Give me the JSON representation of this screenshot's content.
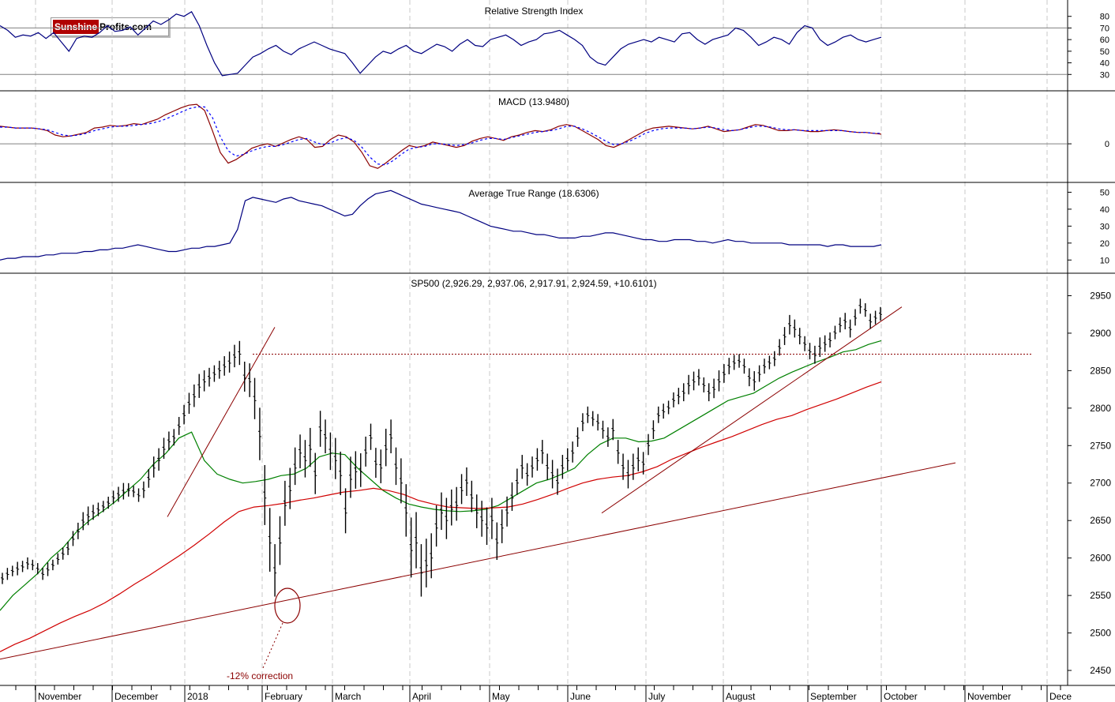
{
  "logo": {
    "part1": "Sunshine",
    "part2": "Profits.com"
  },
  "colors": {
    "price_bars": "#000000",
    "ma_fast": "#008000",
    "ma_slow": "#d00000",
    "trendline": "#8b0000",
    "indicator": "#000080",
    "signal": "#0000ff",
    "reference": "#808080"
  },
  "x_axis": {
    "labels": [
      "November",
      "December",
      "2018",
      "February",
      "March",
      "April",
      "May",
      "June",
      "July",
      "August",
      "September",
      "October",
      "November",
      "Dece"
    ]
  },
  "chart_data": [
    {
      "type": "line",
      "title": "Relative Strength Index",
      "y_ticks": [
        80,
        70,
        60,
        50,
        40,
        30
      ],
      "reference_lines": [
        70,
        30
      ],
      "ylim": [
        20,
        90
      ],
      "series": [
        {
          "values": [
            72,
            68,
            62,
            64,
            63,
            66,
            61,
            66,
            58,
            50,
            61,
            63,
            62,
            66,
            72,
            67,
            68,
            71,
            64,
            70,
            76,
            73,
            77,
            82,
            80,
            84,
            72,
            55,
            40,
            29,
            30,
            31,
            38,
            45,
            48,
            52,
            55,
            50,
            47,
            52,
            55,
            58,
            55,
            52,
            50,
            48,
            40,
            31,
            38,
            45,
            50,
            48,
            52,
            55,
            50,
            48,
            52,
            56,
            54,
            50,
            56,
            60,
            55,
            54,
            60,
            62,
            64,
            60,
            55,
            58,
            60,
            65,
            66,
            68,
            64,
            60,
            55,
            45,
            40,
            38,
            45,
            52,
            56,
            58,
            60,
            58,
            62,
            60,
            58,
            65,
            66,
            60,
            56,
            60,
            62,
            64,
            70,
            68,
            62,
            55,
            58,
            62,
            60,
            56,
            66,
            72,
            70,
            60,
            55,
            58,
            62,
            64,
            60,
            58,
            60,
            62
          ]
        }
      ]
    },
    {
      "type": "line",
      "title": "MACD (13.9480)",
      "y_ticks": [
        0
      ],
      "reference_lines": [
        0
      ],
      "ylim": [
        -35,
        55
      ],
      "series": [
        {
          "name": "MACD",
          "values": [
            20,
            19,
            18,
            18,
            18,
            17,
            15,
            10,
            8,
            9,
            11,
            13,
            18,
            19,
            21,
            20,
            21,
            23,
            22,
            25,
            28,
            33,
            37,
            41,
            44,
            45,
            38,
            15,
            -10,
            -22,
            -18,
            -12,
            -5,
            -2,
            0,
            -3,
            1,
            5,
            8,
            5,
            -4,
            -3,
            5,
            10,
            8,
            2,
            -10,
            -25,
            -28,
            -22,
            -15,
            -8,
            -2,
            -4,
            -2,
            2,
            0,
            -2,
            -4,
            -2,
            3,
            6,
            8,
            6,
            4,
            8,
            10,
            13,
            15,
            14,
            16,
            20,
            22,
            20,
            15,
            10,
            5,
            -2,
            -4,
            0,
            5,
            10,
            15,
            18,
            19,
            20,
            19,
            18,
            17,
            18,
            20,
            17,
            14,
            15,
            16,
            19,
            22,
            21,
            18,
            15,
            15,
            16,
            15,
            14,
            14,
            15,
            16,
            15,
            14,
            13,
            13,
            12,
            11
          ]
        },
        {
          "name": "Signal",
          "values": [
            19,
            19,
            18,
            18,
            18,
            17,
            16,
            13,
            10,
            9,
            10,
            12,
            15,
            17,
            19,
            20,
            20,
            21,
            22,
            23,
            25,
            28,
            32,
            36,
            40,
            42,
            42,
            30,
            8,
            -8,
            -14,
            -12,
            -8,
            -5,
            -3,
            -3,
            -1,
            2,
            5,
            6,
            2,
            -1,
            1,
            5,
            7,
            4,
            -4,
            -15,
            -23,
            -24,
            -19,
            -12,
            -6,
            -4,
            -3,
            0,
            0,
            -1,
            -2,
            -1,
            1,
            4,
            6,
            6,
            5,
            7,
            9,
            11,
            13,
            14,
            15,
            17,
            20,
            20,
            17,
            13,
            8,
            3,
            -1,
            0,
            3,
            7,
            12,
            15,
            17,
            18,
            18,
            18,
            17,
            18,
            19,
            18,
            16,
            15,
            16,
            18,
            20,
            20,
            19,
            17,
            16,
            16,
            15,
            15,
            15,
            15,
            15,
            15,
            14,
            13,
            13,
            12,
            12
          ]
        }
      ]
    },
    {
      "type": "line",
      "title": "Average True Range (18.6306)",
      "y_ticks": [
        50,
        40,
        30,
        20,
        10
      ],
      "ylim": [
        5,
        53
      ],
      "series": [
        {
          "values": [
            10,
            11,
            11,
            12,
            12,
            12,
            13,
            13,
            14,
            14,
            14,
            15,
            15,
            16,
            16,
            17,
            17,
            18,
            19,
            18,
            17,
            16,
            15,
            15,
            16,
            17,
            17,
            18,
            18,
            19,
            20,
            28,
            45,
            47,
            46,
            45,
            44,
            46,
            47,
            45,
            44,
            43,
            42,
            40,
            38,
            36,
            37,
            42,
            46,
            49,
            50,
            51,
            49,
            47,
            45,
            43,
            42,
            41,
            40,
            39,
            38,
            36,
            34,
            32,
            30,
            29,
            28,
            27,
            27,
            26,
            25,
            25,
            24,
            23,
            23,
            23,
            24,
            24,
            25,
            26,
            26,
            25,
            24,
            23,
            22,
            22,
            21,
            21,
            22,
            22,
            22,
            21,
            21,
            20,
            21,
            22,
            21,
            21,
            20,
            20,
            20,
            20,
            20,
            19,
            19,
            19,
            19,
            19,
            18,
            19,
            19,
            18,
            18,
            18,
            18,
            19
          ]
        }
      ]
    },
    {
      "type": "bar",
      "title": "SP500 (2,926.29, 2,937.06, 2,917.91, 2,924.59, +10.6101)",
      "y_ticks": [
        2950,
        2900,
        2850,
        2800,
        2750,
        2700,
        2650,
        2600,
        2550,
        2500,
        2450
      ],
      "ylim": [
        2430,
        2980
      ],
      "close": [
        2572,
        2578,
        2582,
        2585,
        2588,
        2592,
        2590,
        2585,
        2578,
        2584,
        2590,
        2598,
        2605,
        2612,
        2625,
        2635,
        2648,
        2655,
        2660,
        2664,
        2668,
        2673,
        2680,
        2684,
        2688,
        2690,
        2688,
        2683,
        2690,
        2705,
        2720,
        2730,
        2745,
        2755,
        2760,
        2775,
        2790,
        2805,
        2815,
        2828,
        2835,
        2840,
        2845,
        2850,
        2855,
        2860,
        2868,
        2872,
        2840,
        2835,
        2810,
        2762,
        2680,
        2620,
        2580,
        2620,
        2670,
        2690,
        2720,
        2740,
        2730,
        2745,
        2710,
        2770,
        2760,
        2740,
        2730,
        2710,
        2660,
        2705,
        2715,
        2715,
        2740,
        2760,
        2725,
        2720,
        2745,
        2760,
        2720,
        2700,
        2660,
        2610,
        2620,
        2580,
        2590,
        2600,
        2640,
        2660,
        2650,
        2665,
        2670,
        2690,
        2700,
        2680,
        2660,
        2650,
        2640,
        2650,
        2620,
        2640,
        2660,
        2680,
        2700,
        2720,
        2710,
        2720,
        2730,
        2740,
        2720,
        2710,
        2700,
        2720,
        2730,
        2740,
        2760,
        2780,
        2790,
        2785,
        2780,
        2770,
        2760,
        2770,
        2740,
        2720,
        2710,
        2720,
        2730,
        2725,
        2750,
        2770,
        2790,
        2795,
        2800,
        2810,
        2815,
        2820,
        2830,
        2835,
        2840,
        2830,
        2820,
        2825,
        2835,
        2845,
        2855,
        2860,
        2862,
        2855,
        2840,
        2835,
        2845,
        2855,
        2860,
        2865,
        2880,
        2895,
        2910,
        2905,
        2895,
        2885,
        2875,
        2870,
        2880,
        2885,
        2890,
        2900,
        2910,
        2915,
        2905,
        2920,
        2935,
        2930,
        2915,
        2920,
        2925
      ],
      "hl_range": [
        15,
        16,
        14,
        18,
        15,
        16,
        14,
        15,
        16,
        18,
        14,
        15,
        16,
        18,
        20,
        22,
        24,
        25,
        20,
        18,
        15,
        16,
        18,
        20,
        22,
        18,
        15,
        18,
        22,
        25,
        28,
        30,
        28,
        25,
        22,
        24,
        26,
        28,
        30,
        32,
        28,
        25,
        22,
        24,
        26,
        28,
        30,
        32,
        40,
        45,
        55,
        70,
        80,
        85,
        70,
        65,
        60,
        55,
        50,
        45,
        50,
        52,
        55,
        48,
        45,
        50,
        55,
        58,
        60,
        55,
        50,
        45,
        40,
        35,
        40,
        45,
        50,
        45,
        50,
        60,
        70,
        80,
        75,
        70,
        65,
        60,
        55,
        50,
        55,
        48,
        45,
        40,
        38,
        42,
        45,
        48,
        50,
        55,
        50,
        45,
        40,
        38,
        35,
        32,
        30,
        28,
        30,
        32,
        35,
        38,
        35,
        32,
        30,
        28,
        26,
        24,
        22,
        20,
        22,
        24,
        26,
        28,
        32,
        35,
        38,
        35,
        32,
        30,
        28,
        25,
        22,
        20,
        18,
        20,
        22,
        24,
        26,
        25,
        22,
        20,
        24,
        26,
        28,
        25,
        22,
        20,
        18,
        20,
        24,
        26,
        22,
        20,
        18,
        20,
        22,
        24,
        26,
        24,
        22,
        20,
        22,
        24,
        26,
        22,
        20,
        18,
        20,
        22,
        24,
        22,
        20,
        18,
        20,
        18,
        18,
        20,
        22,
        20
      ],
      "series": [
        {
          "values": [
            2530,
            2550,
            2565,
            2580,
            2600,
            2615,
            2635,
            2650,
            2662,
            2675,
            2690,
            2705,
            2725,
            2740,
            2760,
            2768,
            2730,
            2712,
            2705,
            2700,
            2702,
            2705,
            2710,
            2712,
            2720,
            2735,
            2740,
            2738,
            2720,
            2705,
            2690,
            2680,
            2672,
            2668,
            2665,
            2663,
            2662,
            2663,
            2665,
            2670,
            2680,
            2690,
            2700,
            2705,
            2712,
            2720,
            2738,
            2752,
            2760,
            2760,
            2755,
            2756,
            2760,
            2770,
            2780,
            2790,
            2800,
            2810,
            2815,
            2820,
            2830,
            2840,
            2848,
            2855,
            2862,
            2868,
            2875,
            2878,
            2885,
            2890
          ]
        },
        {
          "values": [
            2475,
            2485,
            2493,
            2503,
            2513,
            2522,
            2530,
            2540,
            2552,
            2565,
            2577,
            2590,
            2603,
            2617,
            2632,
            2648,
            2662,
            2668,
            2670,
            2673,
            2677,
            2680,
            2684,
            2688,
            2690,
            2693,
            2690,
            2685,
            2677,
            2672,
            2668,
            2667,
            2666,
            2667,
            2668,
            2672,
            2678,
            2685,
            2693,
            2700,
            2705,
            2708,
            2710,
            2715,
            2722,
            2732,
            2740,
            2748,
            2755,
            2762,
            2770,
            2778,
            2785,
            2790,
            2798,
            2805,
            2812,
            2820,
            2828,
            2835
          ]
        }
      ],
      "trendlines": [
        "rising support line",
        "rising channel line",
        "steep rally line",
        "September support line"
      ],
      "resistance_level": 2872,
      "annotation": "-12% correction"
    }
  ]
}
